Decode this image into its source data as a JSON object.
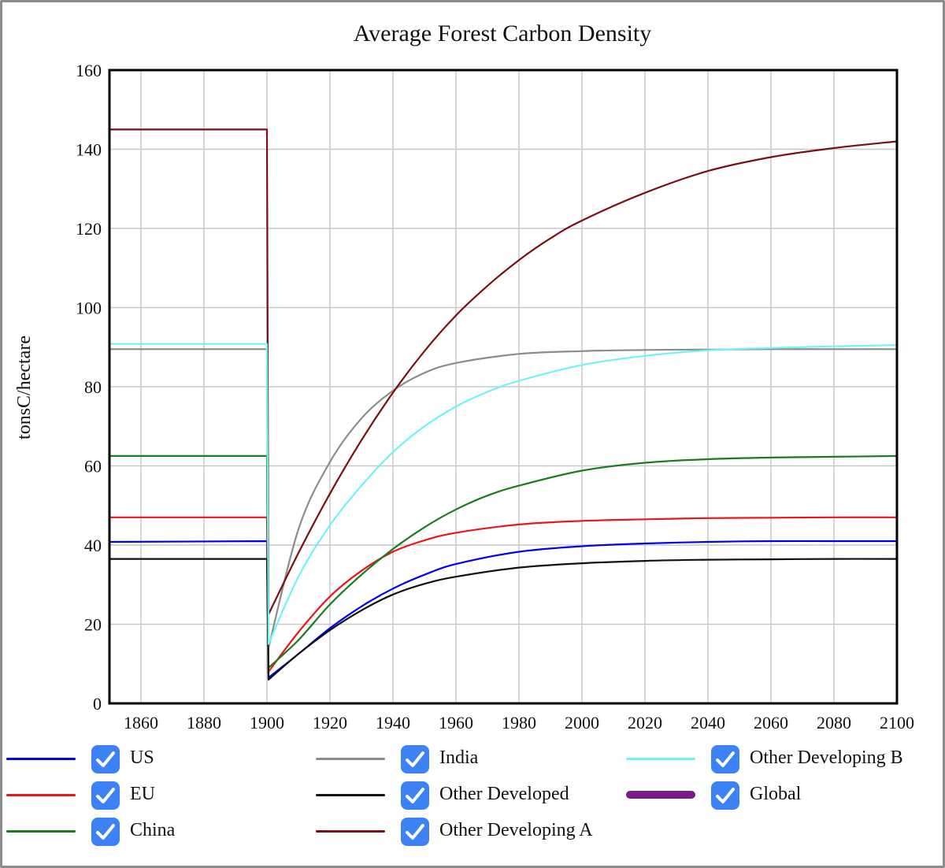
{
  "chart_data": {
    "type": "line",
    "title": "Average Forest Carbon Density",
    "xlabel": "",
    "ylabel": "tonsC/hectare",
    "xlim": [
      1850,
      2100
    ],
    "ylim": [
      0,
      160
    ],
    "x_ticks": [
      1860,
      1880,
      1900,
      1920,
      1940,
      1960,
      1980,
      2000,
      2020,
      2040,
      2060,
      2080,
      2100
    ],
    "y_ticks": [
      0,
      20,
      40,
      60,
      80,
      100,
      120,
      140,
      160
    ],
    "grid": true,
    "legend_position": "bottom",
    "series": [
      {
        "name": "US",
        "color": "#0000ee",
        "x": [
          1850,
          1900,
          1900.5,
          1910,
          1920,
          1930,
          1940,
          1950,
          1960,
          1980,
          2000,
          2020,
          2040,
          2060,
          2080,
          2100
        ],
        "values": [
          40.8,
          41,
          6.5,
          12.5,
          19,
          24.5,
          29,
          32.5,
          35.2,
          38.3,
          39.7,
          40.4,
          40.8,
          41,
          41,
          41
        ]
      },
      {
        "name": "EU",
        "color": "#e8161b",
        "x": [
          1850,
          1900,
          1900.5,
          1910,
          1920,
          1930,
          1940,
          1950,
          1960,
          1980,
          2000,
          2020,
          2040,
          2060,
          2080,
          2100
        ],
        "values": [
          47,
          47,
          8,
          18,
          27,
          33.5,
          38.3,
          41.2,
          43.1,
          45.2,
          46.1,
          46.5,
          46.8,
          46.9,
          47,
          47
        ]
      },
      {
        "name": "China",
        "color": "#1c7b1c",
        "x": [
          1850,
          1900,
          1900.5,
          1910,
          1920,
          1930,
          1940,
          1950,
          1960,
          1970,
          1980,
          2000,
          2020,
          2040,
          2060,
          2080,
          2100
        ],
        "values": [
          62.5,
          62.5,
          9,
          16,
          25,
          32.5,
          39,
          44.5,
          49,
          52.5,
          55,
          58.8,
          60.8,
          61.7,
          62.1,
          62.3,
          62.5
        ]
      },
      {
        "name": "India",
        "color": "#8c8c8c",
        "x": [
          1850,
          1900,
          1900.5,
          1910,
          1920,
          1930,
          1940,
          1950,
          1960,
          1980,
          2000,
          2020,
          2040,
          2060,
          2080,
          2100
        ],
        "values": [
          89.5,
          89.5,
          14,
          44,
          61,
          72,
          79,
          83.5,
          86,
          88.3,
          89,
          89.3,
          89.4,
          89.5,
          89.5,
          89.5
        ]
      },
      {
        "name": "Other Developed",
        "color": "#111111",
        "x": [
          1850,
          1900,
          1900.5,
          1910,
          1920,
          1930,
          1940,
          1950,
          1960,
          1980,
          2000,
          2020,
          2040,
          2060,
          2080,
          2100
        ],
        "values": [
          36.5,
          36.5,
          6,
          12.5,
          18.5,
          23.5,
          27.5,
          30.2,
          32,
          34.3,
          35.4,
          36,
          36.3,
          36.4,
          36.5,
          36.5
        ]
      },
      {
        "name": "Other Developing A",
        "color": "#7a0f12",
        "x": [
          1850,
          1900,
          1900.5,
          1910,
          1920,
          1930,
          1940,
          1950,
          1960,
          1970,
          1980,
          1990,
          2000,
          2020,
          2040,
          2060,
          2080,
          2100
        ],
        "values": [
          145,
          145,
          22.5,
          38,
          53,
          66.5,
          78.5,
          89,
          98,
          105.5,
          112,
          117.5,
          122,
          129,
          134.5,
          138,
          140.3,
          142
        ]
      },
      {
        "name": "Other Developing B",
        "color": "#6ff4f6",
        "x": [
          1850,
          1900,
          1900.5,
          1910,
          1920,
          1930,
          1940,
          1950,
          1960,
          1970,
          1980,
          2000,
          2020,
          2040,
          2060,
          2080,
          2100
        ],
        "values": [
          90.8,
          90.8,
          15,
          32,
          45,
          55,
          63.5,
          70,
          75,
          78.7,
          81.5,
          85.5,
          87.8,
          89.2,
          89.8,
          90.2,
          90.5
        ]
      },
      {
        "name": "Global",
        "color": "#7a1c86",
        "x": [],
        "values": []
      }
    ]
  }
}
